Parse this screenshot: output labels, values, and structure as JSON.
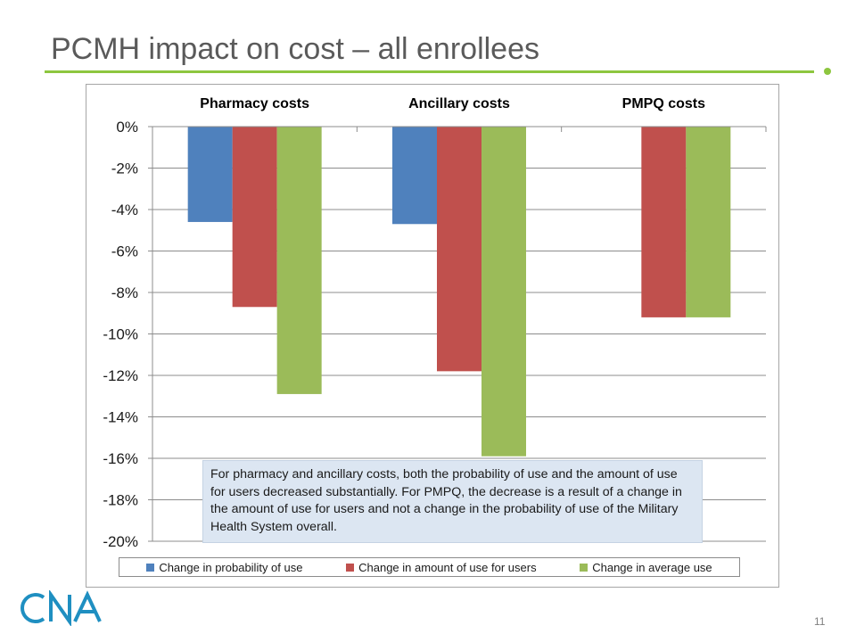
{
  "slide": {
    "title": "PCMH impact on cost – all enrollees",
    "page_number": "11",
    "logo_text": "CNA",
    "accent_color": "#8dc63f"
  },
  "chart_data": {
    "type": "bar",
    "categories": [
      "Pharmacy costs",
      "Ancillary costs",
      "PMPQ costs"
    ],
    "series": [
      {
        "name": "Change in probability of use",
        "color": "#4f81bd",
        "values": [
          -4.6,
          -4.7,
          null
        ]
      },
      {
        "name": "Change in amount of use for users",
        "color": "#c0504d",
        "values": [
          -8.7,
          -11.8,
          -9.2
        ]
      },
      {
        "name": "Change in average use",
        "color": "#9bbb59",
        "values": [
          -12.9,
          -15.9,
          -9.2
        ]
      }
    ],
    "ylim": [
      -20,
      0
    ],
    "yticks": [
      0,
      -2,
      -4,
      -6,
      -8,
      -10,
      -12,
      -14,
      -16,
      -18,
      -20
    ],
    "ytick_labels": [
      "0%",
      "-2%",
      "-4%",
      "-6%",
      "-8%",
      "-10%",
      "-12%",
      "-14%",
      "-16%",
      "-18%",
      "-20%"
    ],
    "grid": true,
    "legend_position": "bottom",
    "annotation": "For pharmacy and ancillary costs, both the probability of use and the amount of use for users decreased substantially. For PMPQ, the decrease is a result of a change in the amount of use for users and not a change in the probability of use of the Military Health System overall."
  }
}
